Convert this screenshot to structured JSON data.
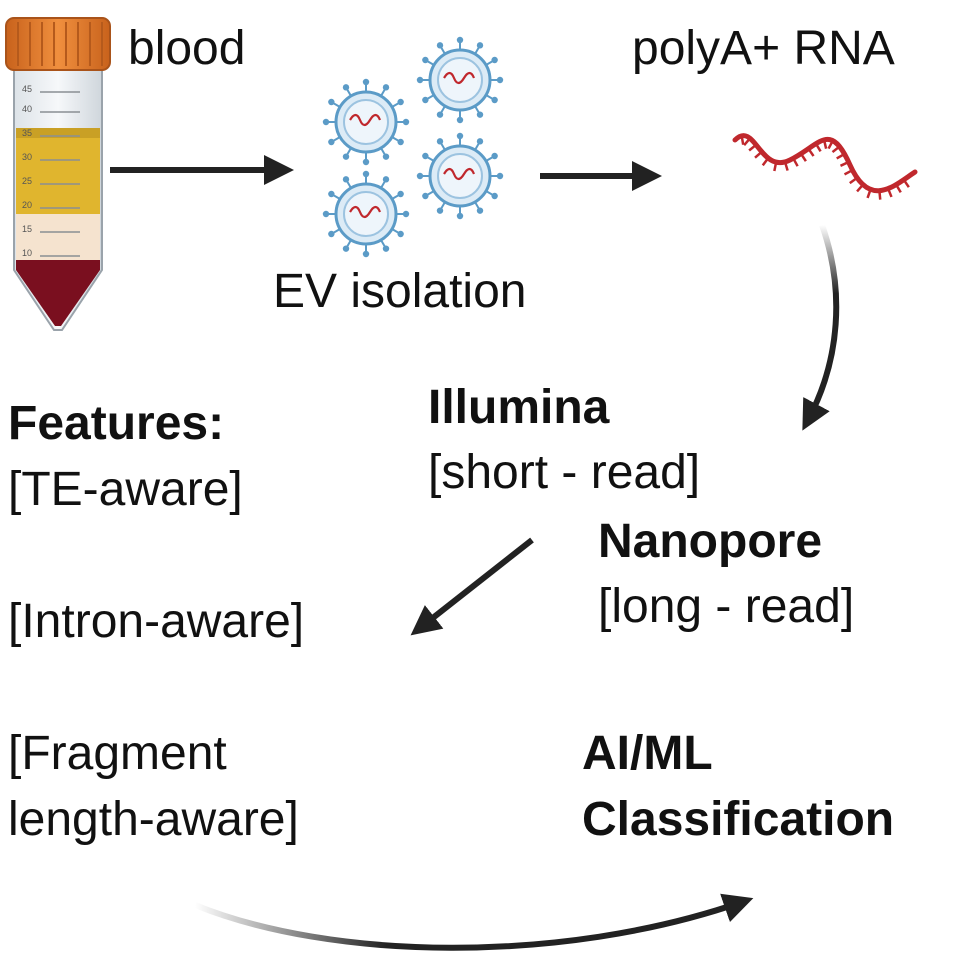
{
  "labels": {
    "blood": "blood",
    "ev_isolation": "EV isolation",
    "polya_rna": "polyA+ RNA",
    "illumina": "Illumina",
    "short_read": "[short - read]",
    "nanopore": "Nanopore",
    "long_read": "[long - read]",
    "features_title": "Features:",
    "te_aware": "[TE-aware]",
    "intron_aware": "[Intron-aware]",
    "fragment_line1": "[Fragment",
    "fragment_line2": "length-aware]",
    "aiml_line1": "AI/ML",
    "aiml_line2": "Classification"
  },
  "tube_scale": [
    "45",
    "40",
    "35",
    "30",
    "25",
    "20",
    "15",
    "10"
  ],
  "colors": {
    "cap": "#e07a2c",
    "plasma": "#e0b52e",
    "buffy": "#f5e3cf",
    "rbc": "#7a0f1f",
    "rna": "#c0282d",
    "vesicle": "#5b9bc7",
    "arrow": "#222222"
  },
  "icons": [
    "blood-tube-icon",
    "extracellular-vesicle-icon",
    "rna-strand-icon"
  ]
}
